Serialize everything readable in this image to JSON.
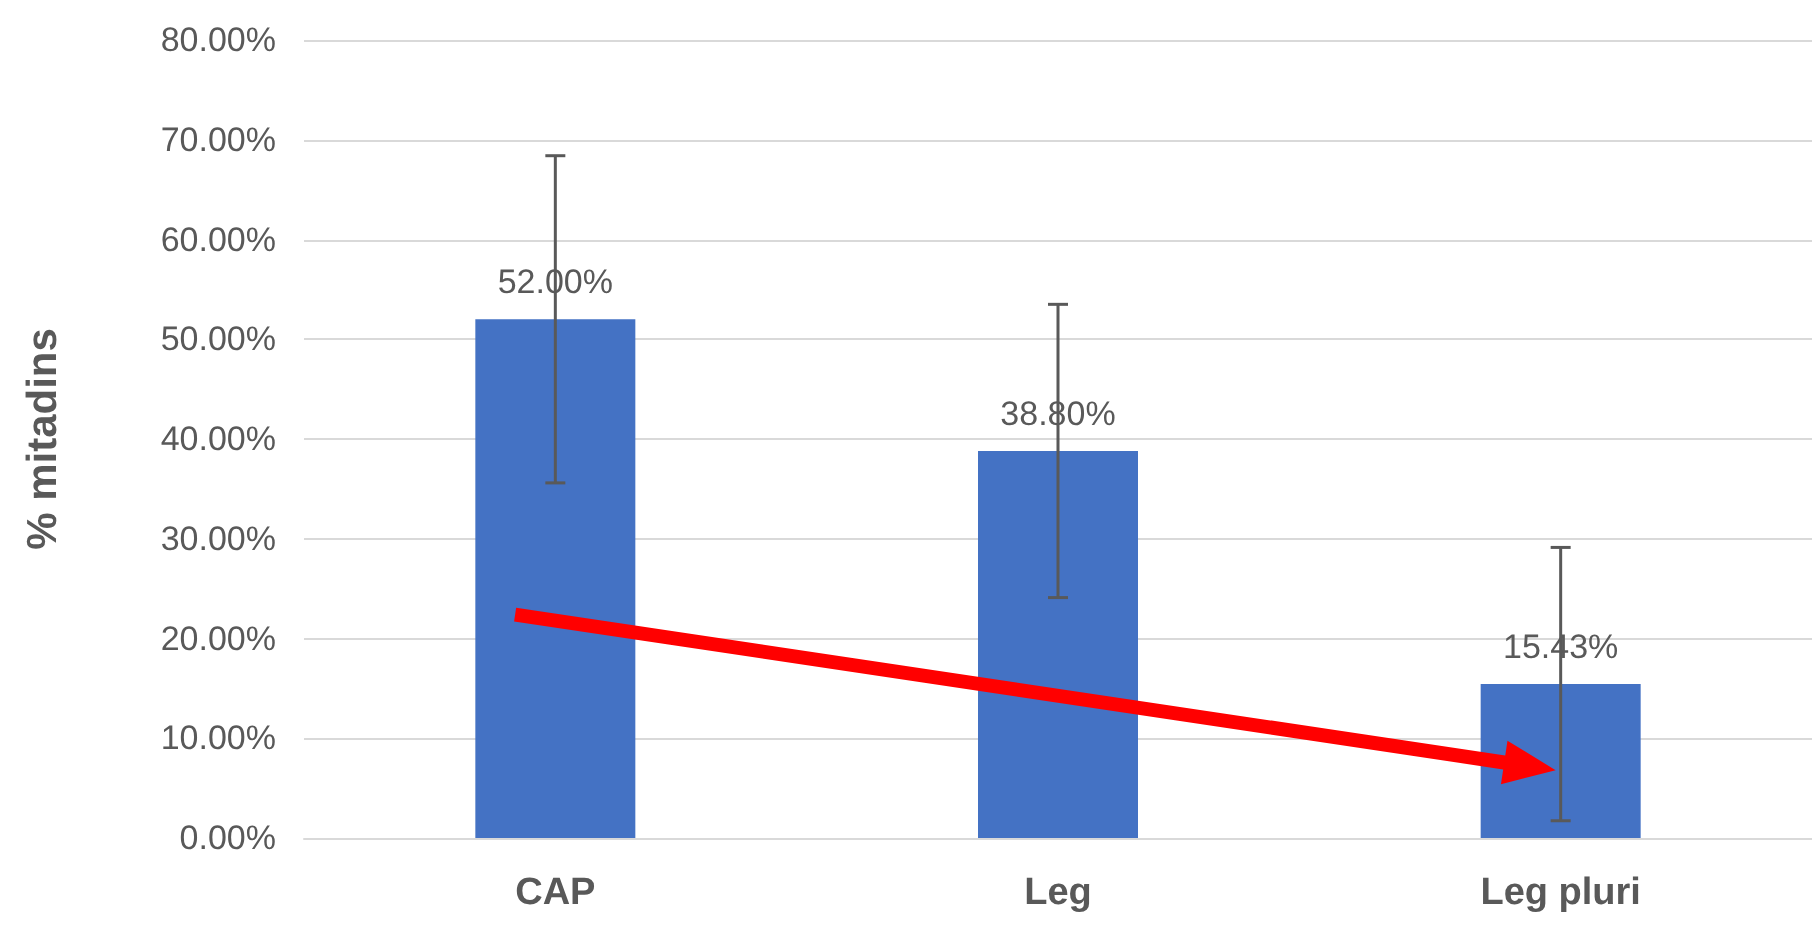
{
  "chart_data": {
    "type": "bar",
    "ylabel": "% mitadins",
    "categories": [
      "CAP",
      "Leg",
      "Leg pluri"
    ],
    "values": [
      52.0,
      38.8,
      15.43
    ],
    "value_labels": [
      "52.00%",
      "38.80%",
      "15.43%"
    ],
    "errors": [
      16.4,
      14.7,
      13.7
    ],
    "color": "#4472c4",
    "ylim": [
      0,
      80
    ],
    "yticks": [
      {
        "value": 0,
        "label": "0.00%"
      },
      {
        "value": 10,
        "label": "10.00%"
      },
      {
        "value": 20,
        "label": "20.00%"
      },
      {
        "value": 30,
        "label": "30.00%"
      },
      {
        "value": 40,
        "label": "40.00%"
      },
      {
        "value": 50,
        "label": "50.00%"
      },
      {
        "value": 60,
        "label": "60.00%"
      },
      {
        "value": 70,
        "label": "70.00%"
      },
      {
        "value": 80,
        "label": "80.00%"
      }
    ],
    "grid": "y"
  }
}
